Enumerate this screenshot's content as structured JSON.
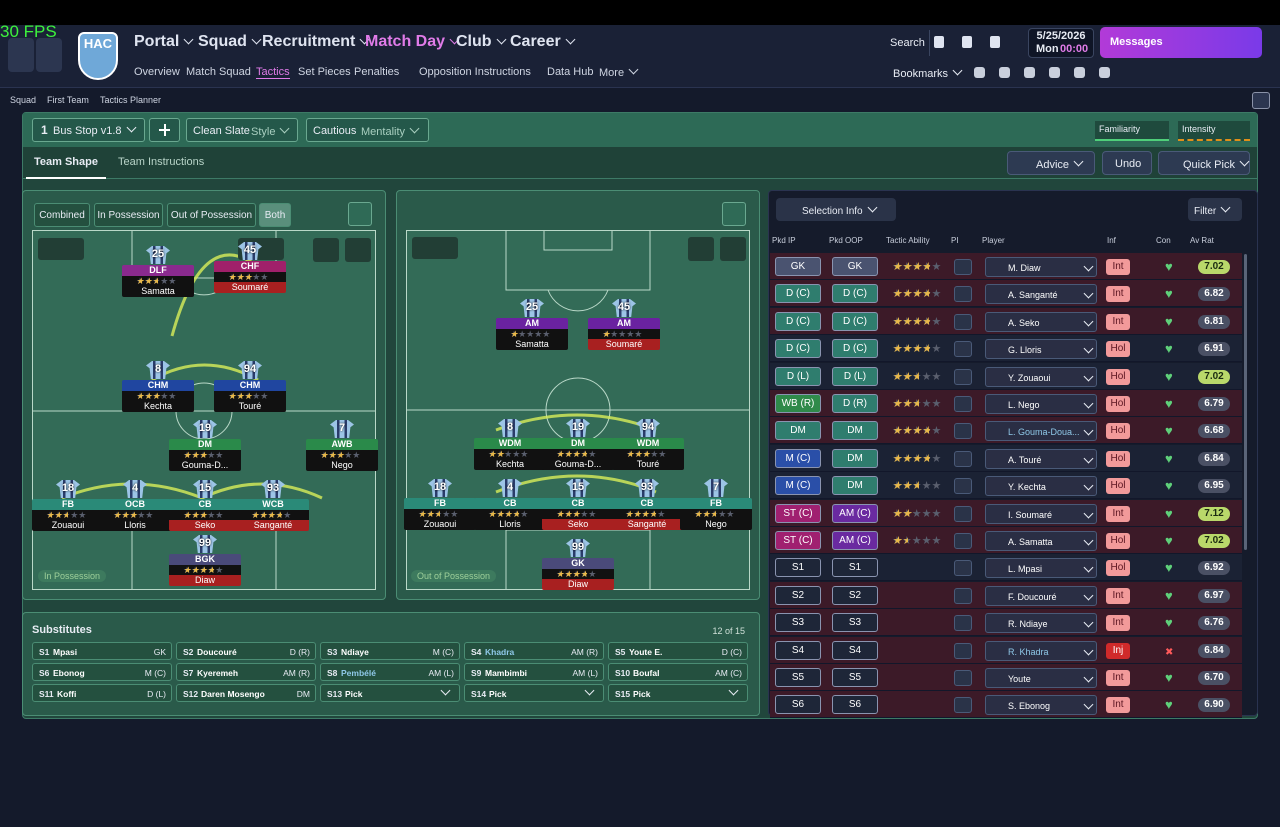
{
  "fps": "30 FPS",
  "club": "HAC",
  "nav": {
    "main": [
      "Portal",
      "Squad",
      "Recruitment",
      "Match Day",
      "Club",
      "Career"
    ],
    "sub": [
      "Overview",
      "Match Squad",
      "Tactics",
      "Set Pieces",
      "Penalties",
      "Opposition Instructions",
      "Data Hub",
      "More"
    ]
  },
  "search": "Search",
  "date": "5/25/2026",
  "day": "Mon",
  "time": "00:00",
  "messages": "Messages",
  "bookmarks": "Bookmarks",
  "breadcrumb": [
    "Squad",
    "First Team",
    "Tactics Planner"
  ],
  "toolbar": {
    "tactic_slot": "1",
    "tactic": "Bus Stop v1.8",
    "style": "Clean Slate",
    "style_label": "Style",
    "mentality": "Cautious",
    "mentality_label": "Mentality",
    "familiarity": "Familiarity",
    "intensity": "Intensity"
  },
  "tabs": [
    "Team Shape",
    "Team Instructions"
  ],
  "actions": [
    "Advice",
    "Undo",
    "Quick Pick"
  ],
  "view_toggles": [
    "Combined",
    "In Possession",
    "Out of Possession",
    "Both"
  ],
  "in_possession": {
    "label": "In Possession",
    "players": [
      {
        "number": "25",
        "role": "DLF",
        "name": "Samatta",
        "stars": 2.5
      },
      {
        "number": "45",
        "role": "CHF",
        "name": "Soumaré",
        "stars": 3
      },
      {
        "number": "8",
        "role": "CHM",
        "name": "Kechta",
        "stars": 3
      },
      {
        "number": "94",
        "role": "CHM",
        "name": "Touré",
        "stars": 3
      },
      {
        "number": "19",
        "role": "DM",
        "name": "Gouma-D...",
        "stars": 3
      },
      {
        "number": "7",
        "role": "AWB",
        "name": "Nego",
        "stars": 3
      },
      {
        "number": "18",
        "role": "FB",
        "name": "Zouaoui",
        "stars": 2.5
      },
      {
        "number": "4",
        "role": "OCB",
        "name": "Lloris",
        "stars": 3
      },
      {
        "number": "15",
        "role": "CB",
        "name": "Seko",
        "stars": 3
      },
      {
        "number": "93",
        "role": "WCB",
        "name": "Sanganté",
        "stars": 3.5
      },
      {
        "number": "99",
        "role": "BGK",
        "name": "Diaw",
        "stars": 3.5
      }
    ]
  },
  "out_of_possession": {
    "label": "Out of Possession",
    "players": [
      {
        "number": "25",
        "role": "AM",
        "name": "Samatta",
        "stars": 1
      },
      {
        "number": "45",
        "role": "AM",
        "name": "Soumaré",
        "stars": 1
      },
      {
        "number": "8",
        "role": "WDM",
        "name": "Kechta",
        "stars": 2
      },
      {
        "number": "19",
        "role": "DM",
        "name": "Gouma-D...",
        "stars": 3.5
      },
      {
        "number": "94",
        "role": "WDM",
        "name": "Touré",
        "stars": 3
      },
      {
        "number": "18",
        "role": "FB",
        "name": "Zouaoui",
        "stars": 2.5
      },
      {
        "number": "4",
        "role": "CB",
        "name": "Lloris",
        "stars": 3.5
      },
      {
        "number": "15",
        "role": "CB",
        "name": "Seko",
        "stars": 3
      },
      {
        "number": "93",
        "role": "CB",
        "name": "Sanganté",
        "stars": 3.5
      },
      {
        "number": "7",
        "role": "FB",
        "name": "Nego",
        "stars": 2.5
      },
      {
        "number": "99",
        "role": "GK",
        "name": "Diaw",
        "stars": 3.5
      }
    ]
  },
  "substitutes": {
    "title": "Substitutes",
    "count": "12 of 15",
    "slots": [
      {
        "slot": "S1",
        "name": "Mpasi",
        "pos": "GK"
      },
      {
        "slot": "S2",
        "name": "Doucouré",
        "pos": "D (R)"
      },
      {
        "slot": "S3",
        "name": "Ndiaye",
        "pos": "M (C)"
      },
      {
        "slot": "S4",
        "name": "Khadra",
        "pos": "AM (R)"
      },
      {
        "slot": "S5",
        "name": "Youte E.",
        "pos": "D (C)"
      },
      {
        "slot": "S6",
        "name": "Ebonog",
        "pos": "M (C)"
      },
      {
        "slot": "S7",
        "name": "Kyeremeh",
        "pos": "AM (R)"
      },
      {
        "slot": "S8",
        "name": "Pembélé",
        "pos": "AM (L)"
      },
      {
        "slot": "S9",
        "name": "Mambimbi",
        "pos": "AM (L)"
      },
      {
        "slot": "S10",
        "name": "Boufal",
        "pos": "AM (C)"
      },
      {
        "slot": "S11",
        "name": "Koffi",
        "pos": "D (L)"
      },
      {
        "slot": "S12",
        "name": "Daren Mosengo",
        "pos": "DM"
      },
      {
        "slot": "S13",
        "name": "Pick"
      },
      {
        "slot": "S14",
        "name": "Pick"
      },
      {
        "slot": "S15",
        "name": "Pick"
      }
    ]
  },
  "selection": {
    "button": "Selection Info",
    "filter": "Filter",
    "columns": [
      "Pkd IP",
      "Pkd OOP",
      "Tactic Ability",
      "PI",
      "Player",
      "Inf",
      "Con",
      "Av Rat"
    ],
    "rows": [
      {
        "ip": "GK",
        "oop": "GK",
        "ability": 3.5,
        "player": "M. Diaw",
        "inf": "Int",
        "rating": "7.02"
      },
      {
        "ip": "D (C)",
        "oop": "D (C)",
        "ability": 3.5,
        "player": "A. Sanganté",
        "inf": "Int",
        "rating": "6.82"
      },
      {
        "ip": "D (C)",
        "oop": "D (C)",
        "ability": 3.5,
        "player": "A. Seko",
        "inf": "Int",
        "rating": "6.81"
      },
      {
        "ip": "D (C)",
        "oop": "D (C)",
        "ability": 3.5,
        "player": "G. Lloris",
        "inf": "Hol",
        "rating": "6.91"
      },
      {
        "ip": "D (L)",
        "oop": "D (L)",
        "ability": 2.5,
        "player": "Y. Zouaoui",
        "inf": "Hol",
        "rating": "7.02"
      },
      {
        "ip": "WB (R)",
        "oop": "D (R)",
        "ability": 2.5,
        "player": "L. Nego",
        "inf": "Hol",
        "rating": "6.79"
      },
      {
        "ip": "DM",
        "oop": "DM",
        "ability": 3.5,
        "player": "L. Gouma-Doua...",
        "inf": "Hol",
        "rating": "6.68"
      },
      {
        "ip": "M (C)",
        "oop": "DM",
        "ability": 3.5,
        "player": "A. Touré",
        "inf": "Hol",
        "rating": "6.84"
      },
      {
        "ip": "M (C)",
        "oop": "DM",
        "ability": 2.5,
        "player": "Y. Kechta",
        "inf": "Hol",
        "rating": "6.95"
      },
      {
        "ip": "ST (C)",
        "oop": "AM (C)",
        "ability": 2,
        "player": "I. Soumaré",
        "inf": "Int",
        "rating": "7.12"
      },
      {
        "ip": "ST (C)",
        "oop": "AM (C)",
        "ability": 1.5,
        "player": "A. Samatta",
        "inf": "Hol",
        "rating": "7.02"
      },
      {
        "ip": "S1",
        "oop": "S1",
        "player": "L. Mpasi",
        "inf": "Hol",
        "rating": "6.92"
      },
      {
        "ip": "S2",
        "oop": "S2",
        "player": "F. Doucouré",
        "inf": "Int",
        "rating": "6.97"
      },
      {
        "ip": "S3",
        "oop": "S3",
        "player": "R. Ndiaye",
        "inf": "Int",
        "rating": "6.76"
      },
      {
        "ip": "S4",
        "oop": "S4",
        "player": "R. Khadra",
        "inf": "Inj",
        "rating": "6.84"
      },
      {
        "ip": "S5",
        "oop": "S5",
        "player": "Youte",
        "inf": "Int",
        "rating": "6.70"
      },
      {
        "ip": "S6",
        "oop": "S6",
        "player": "S. Ebonog",
        "inf": "Int",
        "rating": "6.90"
      }
    ]
  }
}
